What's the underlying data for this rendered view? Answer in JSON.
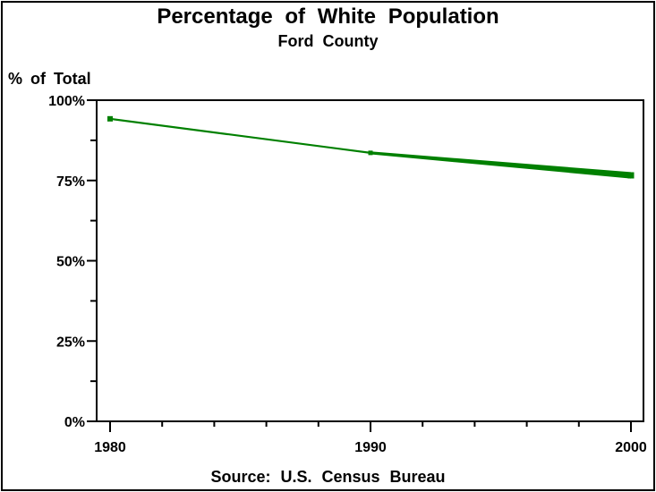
{
  "header": {
    "title": "Percentage of White Population",
    "subtitle": "Ford County"
  },
  "footer": {
    "source_note": "Source: U.S. Census Bureau"
  },
  "chart_data": {
    "type": "line",
    "title": "Percentage of White Population",
    "subtitle": "Ford County",
    "xlabel": "",
    "ylabel": "% of Total",
    "source_note": "Source: U.S. Census Bureau",
    "x": [
      1980,
      1990,
      2000
    ],
    "series": [
      {
        "name": "white-population-percent",
        "color": "#008000",
        "values": [
          94.2,
          83.6,
          76.6
        ]
      }
    ],
    "xlim": [
      1980,
      2000
    ],
    "ylim": [
      0,
      100
    ],
    "x_major_ticks": [
      {
        "value": 1980,
        "label": "1980"
      },
      {
        "value": 1990,
        "label": "1990"
      },
      {
        "value": 2000,
        "label": "2000"
      }
    ],
    "x_minor_ticks": [
      1982,
      1984,
      1986,
      1988,
      1992,
      1994,
      1996,
      1998
    ],
    "y_major_ticks": [
      {
        "value": 0,
        "label": "0%"
      },
      {
        "value": 25,
        "label": "25%"
      },
      {
        "value": 50,
        "label": "50%"
      },
      {
        "value": 75,
        "label": "75%"
      },
      {
        "value": 100,
        "label": "100%"
      }
    ],
    "y_minor_ticks": [
      12.5,
      37.5,
      62.5,
      87.5
    ],
    "grid": "off",
    "legend": "none",
    "axis_color": "#000000",
    "background_color": "#ffffff"
  }
}
